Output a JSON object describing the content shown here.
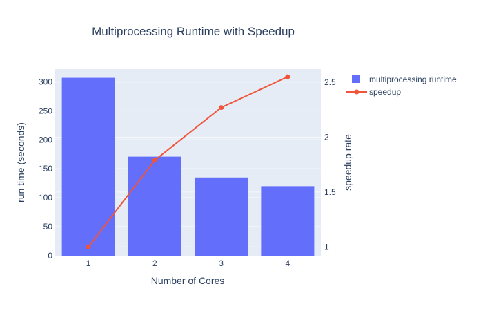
{
  "chart_data": {
    "type": "bar",
    "title": "Multiprocessing Runtime with Speedup",
    "xlabel": "Number of Cores",
    "ylabel": "run time (seconds)",
    "y2label": "speedup rate",
    "categories": [
      "1",
      "2",
      "3",
      "4"
    ],
    "series": [
      {
        "name": "multiprocessing runtime",
        "type": "bar",
        "axis": "y",
        "color": "#636efa",
        "values": [
          307,
          171,
          135,
          120
        ]
      },
      {
        "name": "speedup",
        "type": "line",
        "axis": "y2",
        "color": "#ef553b",
        "values": [
          1.0,
          1.79,
          2.27,
          2.55
        ]
      }
    ],
    "ylim": [
      0,
      322
    ],
    "y_ticks": [
      0,
      50,
      100,
      150,
      200,
      250,
      300
    ],
    "y2lim": [
      0.92,
      2.62
    ],
    "y2_ticks": [
      1,
      1.5,
      2,
      2.5
    ],
    "grid": true,
    "legend_position": "top-right"
  },
  "colors": {
    "plot_background": "#e5ecf6",
    "gridline": "#ffffff",
    "text": "#2a3f5f"
  }
}
